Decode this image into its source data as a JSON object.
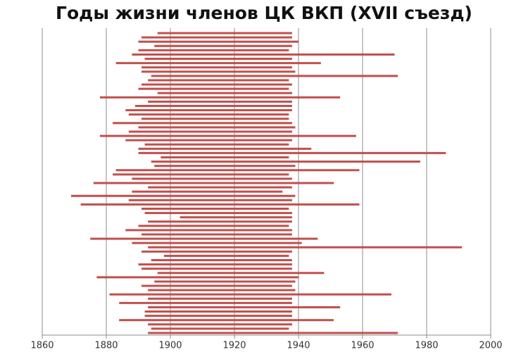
{
  "chart_data": {
    "type": "range-bar",
    "title": "Годы жизни членов ЦК ВКП (XVII съезд)",
    "starts": [
      1896,
      1891,
      1890,
      1895,
      1890,
      1888,
      1892,
      1883,
      1891,
      1891,
      1894,
      1893,
      1891,
      1890,
      1896,
      1878,
      1893,
      1889,
      1886,
      1887,
      1891,
      1882,
      1890,
      1887,
      1878,
      1886,
      1892,
      1890,
      1890,
      1897,
      1894,
      1895,
      1883,
      1882,
      1888,
      1876,
      1893,
      1888,
      1869,
      1887,
      1872,
      1891,
      1892,
      1903,
      1893,
      1890,
      1886,
      1891,
      1875,
      1888,
      1893,
      1891,
      1898,
      1894,
      1890,
      1891,
      1896,
      1877,
      1895,
      1891,
      1893,
      1881,
      1893,
      1884,
      1893,
      1892,
      1892,
      1884,
      1893,
      1894,
      1893
    ],
    "ends": [
      1938,
      1938,
      1940,
      1938,
      1937,
      1970,
      1938,
      1947,
      1938,
      1939,
      1971,
      1937,
      1938,
      1937,
      1938,
      1953,
      1938,
      1938,
      1938,
      1937,
      1937,
      1938,
      1939,
      1938,
      1958,
      1938,
      1937,
      1944,
      1986,
      1937,
      1978,
      1939,
      1959,
      1937,
      1938,
      1951,
      1938,
      1935,
      1939,
      1938,
      1959,
      1937,
      1938,
      1938,
      1938,
      1937,
      1938,
      1938,
      1946,
      1941,
      1991,
      1938,
      1937,
      1938,
      1938,
      1938,
      1948,
      1940,
      1939,
      1938,
      1939,
      1969,
      1938,
      1938,
      1953,
      1938,
      1938,
      1951,
      1938,
      1937,
      1971
    ],
    "color": "#c0504d",
    "xlim": [
      1860,
      2000
    ],
    "xticks": [
      1860,
      1880,
      1900,
      1920,
      1940,
      1960,
      1980,
      2000
    ],
    "grid": true
  }
}
